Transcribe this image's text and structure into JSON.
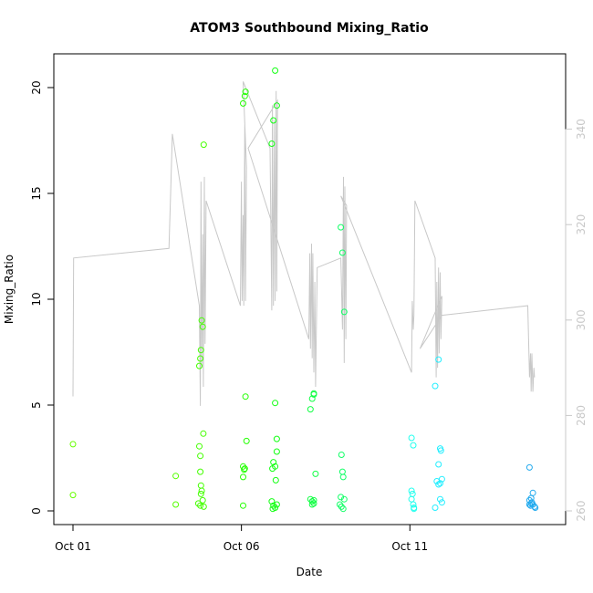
{
  "chart_data": {
    "type": "scatter",
    "title": "ATOM3 Southbound Mixing_Ratio",
    "xlabel": "Date",
    "ylabel": "Mixing_Ratio",
    "x_ticks": [
      "Oct 01",
      "Oct 06",
      "Oct 11"
    ],
    "y_ticks": [
      "0",
      "5",
      "10",
      "15",
      "20"
    ],
    "y2_ticks": [
      "260",
      "280",
      "300",
      "320",
      "340"
    ],
    "xlim_days": [
      1,
      15
    ],
    "ylim": [
      -0.7,
      21.5
    ],
    "y2lim": [
      259,
      353
    ],
    "grid": false,
    "legend": "none",
    "colors": {
      "line": "#c8c8c8",
      "axis": "#000000",
      "right_axis": "#c8c8c8"
    },
    "series": [
      {
        "role": "points",
        "points": [
          {
            "x": 1.0,
            "y": 3.15,
            "c": "#66ff00"
          },
          {
            "x": 1.0,
            "y": 0.75,
            "c": "#66ff00"
          },
          {
            "x": 4.05,
            "y": 1.65,
            "c": "#55ff00"
          },
          {
            "x": 4.05,
            "y": 0.3,
            "c": "#55ff00"
          },
          {
            "x": 4.75,
            "y": 6.85,
            "c": "#44ff00"
          },
          {
            "x": 4.78,
            "y": 7.2,
            "c": "#44ff00"
          },
          {
            "x": 4.8,
            "y": 7.6,
            "c": "#44ff00"
          },
          {
            "x": 4.82,
            "y": 9.0,
            "c": "#44ff00"
          },
          {
            "x": 4.85,
            "y": 8.7,
            "c": "#44ff00"
          },
          {
            "x": 4.88,
            "y": 17.3,
            "c": "#44ff00"
          },
          {
            "x": 4.87,
            "y": 3.65,
            "c": "#44ff00"
          },
          {
            "x": 4.75,
            "y": 3.05,
            "c": "#44ff00"
          },
          {
            "x": 4.78,
            "y": 2.6,
            "c": "#44ff00"
          },
          {
            "x": 4.78,
            "y": 1.85,
            "c": "#44ff00"
          },
          {
            "x": 4.8,
            "y": 1.2,
            "c": "#44ff00"
          },
          {
            "x": 4.82,
            "y": 0.95,
            "c": "#44ff00"
          },
          {
            "x": 4.72,
            "y": 0.35,
            "c": "#44ff00"
          },
          {
            "x": 4.78,
            "y": 0.25,
            "c": "#44ff00"
          },
          {
            "x": 4.85,
            "y": 0.5,
            "c": "#44ff00"
          },
          {
            "x": 4.88,
            "y": 0.2,
            "c": "#44ff00"
          },
          {
            "x": 4.8,
            "y": 0.8,
            "c": "#44ff00"
          },
          {
            "x": 6.05,
            "y": 19.25,
            "c": "#22ff00"
          },
          {
            "x": 6.1,
            "y": 19.6,
            "c": "#22ff00"
          },
          {
            "x": 6.12,
            "y": 19.8,
            "c": "#22ff00"
          },
          {
            "x": 6.12,
            "y": 5.4,
            "c": "#22ff00"
          },
          {
            "x": 6.15,
            "y": 3.3,
            "c": "#22ff00"
          },
          {
            "x": 6.05,
            "y": 2.1,
            "c": "#22ff00"
          },
          {
            "x": 6.08,
            "y": 1.95,
            "c": "#22ff00"
          },
          {
            "x": 6.1,
            "y": 2.0,
            "c": "#22ff00"
          },
          {
            "x": 6.05,
            "y": 1.6,
            "c": "#22ff00"
          },
          {
            "x": 6.05,
            "y": 0.25,
            "c": "#22ff00"
          },
          {
            "x": 6.9,
            "y": 17.35,
            "c": "#11ff11"
          },
          {
            "x": 6.95,
            "y": 18.45,
            "c": "#11ff11"
          },
          {
            "x": 7.0,
            "y": 20.8,
            "c": "#11ff11"
          },
          {
            "x": 7.05,
            "y": 19.15,
            "c": "#11ff11"
          },
          {
            "x": 7.0,
            "y": 5.1,
            "c": "#11ff11"
          },
          {
            "x": 7.05,
            "y": 3.4,
            "c": "#11ff11"
          },
          {
            "x": 7.05,
            "y": 2.8,
            "c": "#11ff11"
          },
          {
            "x": 6.95,
            "y": 2.3,
            "c": "#11ff11"
          },
          {
            "x": 7.0,
            "y": 2.1,
            "c": "#11ff11"
          },
          {
            "x": 6.92,
            "y": 2.0,
            "c": "#11ff11"
          },
          {
            "x": 7.02,
            "y": 1.45,
            "c": "#11ff11"
          },
          {
            "x": 6.9,
            "y": 0.45,
            "c": "#11ff11"
          },
          {
            "x": 6.95,
            "y": 0.25,
            "c": "#11ff11"
          },
          {
            "x": 7.0,
            "y": 0.15,
            "c": "#11ff11"
          },
          {
            "x": 7.05,
            "y": 0.3,
            "c": "#11ff11"
          },
          {
            "x": 6.93,
            "y": 0.1,
            "c": "#11ff11"
          },
          {
            "x": 8.05,
            "y": 4.8,
            "c": "#11ff44"
          },
          {
            "x": 8.1,
            "y": 5.3,
            "c": "#11ff44"
          },
          {
            "x": 8.15,
            "y": 5.5,
            "c": "#11ff44"
          },
          {
            "x": 8.15,
            "y": 5.55,
            "c": "#11ff44"
          },
          {
            "x": 8.2,
            "y": 1.75,
            "c": "#11ff44"
          },
          {
            "x": 8.05,
            "y": 0.55,
            "c": "#11ff44"
          },
          {
            "x": 8.1,
            "y": 0.45,
            "c": "#11ff44"
          },
          {
            "x": 8.15,
            "y": 0.5,
            "c": "#11ff44"
          },
          {
            "x": 8.1,
            "y": 0.3,
            "c": "#11ff44"
          },
          {
            "x": 8.15,
            "y": 0.35,
            "c": "#11ff44"
          },
          {
            "x": 8.95,
            "y": 13.4,
            "c": "#11ff66"
          },
          {
            "x": 9.0,
            "y": 12.2,
            "c": "#11ff66"
          },
          {
            "x": 9.05,
            "y": 9.4,
            "c": "#11ff66"
          },
          {
            "x": 8.97,
            "y": 2.65,
            "c": "#11ff66"
          },
          {
            "x": 9.0,
            "y": 1.85,
            "c": "#11ff66"
          },
          {
            "x": 9.02,
            "y": 1.6,
            "c": "#11ff66"
          },
          {
            "x": 8.95,
            "y": 0.65,
            "c": "#11ff66"
          },
          {
            "x": 9.05,
            "y": 0.55,
            "c": "#11ff66"
          },
          {
            "x": 8.92,
            "y": 0.3,
            "c": "#11ff66"
          },
          {
            "x": 8.97,
            "y": 0.2,
            "c": "#11ff66"
          },
          {
            "x": 9.02,
            "y": 0.1,
            "c": "#11ff66"
          },
          {
            "x": 11.05,
            "y": 3.45,
            "c": "#22ffee"
          },
          {
            "x": 11.1,
            "y": 3.1,
            "c": "#22ffee"
          },
          {
            "x": 11.05,
            "y": 0.95,
            "c": "#22ffee"
          },
          {
            "x": 11.08,
            "y": 0.8,
            "c": "#22ffee"
          },
          {
            "x": 11.05,
            "y": 0.55,
            "c": "#22ffee"
          },
          {
            "x": 11.1,
            "y": 0.3,
            "c": "#22ffee"
          },
          {
            "x": 11.12,
            "y": 0.15,
            "c": "#22ffee"
          },
          {
            "x": 11.12,
            "y": 0.1,
            "c": "#22ffee"
          },
          {
            "x": 11.75,
            "y": 5.9,
            "c": "#22eeff"
          },
          {
            "x": 11.85,
            "y": 7.15,
            "c": "#22eeff"
          },
          {
            "x": 11.9,
            "y": 2.95,
            "c": "#22eeff"
          },
          {
            "x": 11.92,
            "y": 2.85,
            "c": "#22eeff"
          },
          {
            "x": 11.85,
            "y": 2.2,
            "c": "#22eeff"
          },
          {
            "x": 11.8,
            "y": 1.4,
            "c": "#22eeff"
          },
          {
            "x": 11.85,
            "y": 1.25,
            "c": "#22eeff"
          },
          {
            "x": 11.9,
            "y": 1.3,
            "c": "#22eeff"
          },
          {
            "x": 11.95,
            "y": 1.5,
            "c": "#22eeff"
          },
          {
            "x": 11.9,
            "y": 0.55,
            "c": "#22eeff"
          },
          {
            "x": 11.95,
            "y": 0.4,
            "c": "#22eeff"
          },
          {
            "x": 11.75,
            "y": 0.15,
            "c": "#22eeff"
          },
          {
            "x": 14.55,
            "y": 2.05,
            "c": "#22aaee"
          },
          {
            "x": 14.65,
            "y": 0.85,
            "c": "#22aaee"
          },
          {
            "x": 14.6,
            "y": 0.6,
            "c": "#22aaee"
          },
          {
            "x": 14.55,
            "y": 0.5,
            "c": "#22aaee"
          },
          {
            "x": 14.62,
            "y": 0.4,
            "c": "#22aaee"
          },
          {
            "x": 14.6,
            "y": 0.35,
            "c": "#22aaee"
          },
          {
            "x": 14.58,
            "y": 0.25,
            "c": "#22aaee"
          },
          {
            "x": 14.65,
            "y": 0.3,
            "c": "#22aaee"
          },
          {
            "x": 14.7,
            "y": 0.2,
            "c": "#22aaee"
          },
          {
            "x": 14.72,
            "y": 0.15,
            "c": "#22aaee"
          },
          {
            "x": 14.55,
            "y": 0.3,
            "c": "#22aaee"
          }
        ]
      },
      {
        "role": "line_right_axis",
        "points": [
          [
            1.0,
            284
          ],
          [
            1.02,
            313
          ],
          [
            3.85,
            315
          ],
          [
            3.9,
            327
          ],
          [
            3.95,
            339
          ],
          [
            4.75,
            303
          ],
          [
            4.78,
            282
          ],
          [
            4.8,
            329
          ],
          [
            4.82,
            290
          ],
          [
            4.85,
            318
          ],
          [
            4.87,
            286
          ],
          [
            4.9,
            330
          ],
          [
            4.92,
            295
          ],
          [
            4.95,
            325
          ],
          [
            5.97,
            303
          ],
          [
            6.0,
            329
          ],
          [
            6.02,
            304
          ],
          [
            6.05,
            322
          ],
          [
            6.07,
            303
          ],
          [
            6.1,
            341
          ],
          [
            6.12,
            304
          ],
          [
            6.15,
            332
          ],
          [
            6.05,
            350
          ],
          [
            6.85,
            336
          ],
          [
            6.9,
            302
          ],
          [
            6.92,
            345
          ],
          [
            6.95,
            303
          ],
          [
            6.98,
            342
          ],
          [
            7.0,
            304
          ],
          [
            7.03,
            348
          ],
          [
            7.05,
            306
          ],
          [
            7.07,
            346
          ],
          [
            6.2,
            336
          ],
          [
            8.0,
            296
          ],
          [
            8.03,
            314
          ],
          [
            8.05,
            294
          ],
          [
            8.08,
            316
          ],
          [
            8.1,
            292
          ],
          [
            8.12,
            314
          ],
          [
            8.15,
            289
          ],
          [
            8.18,
            308
          ],
          [
            8.2,
            286
          ],
          [
            8.25,
            311
          ],
          [
            8.95,
            313
          ],
          [
            9.0,
            298
          ],
          [
            9.03,
            330
          ],
          [
            9.05,
            291
          ],
          [
            9.07,
            328
          ],
          [
            9.1,
            296
          ],
          [
            9.12,
            324
          ],
          [
            8.95,
            326
          ],
          [
            11.05,
            289
          ],
          [
            11.07,
            304
          ],
          [
            11.1,
            298
          ],
          [
            11.12,
            301
          ],
          [
            11.15,
            325
          ],
          [
            11.75,
            313
          ],
          [
            11.78,
            288
          ],
          [
            11.8,
            308
          ],
          [
            11.82,
            290
          ],
          [
            11.85,
            311
          ],
          [
            11.87,
            293
          ],
          [
            11.9,
            310
          ],
          [
            11.92,
            296
          ],
          [
            11.95,
            305
          ],
          [
            11.3,
            294
          ],
          [
            11.95,
            301
          ],
          [
            14.5,
            303
          ],
          [
            14.55,
            288
          ],
          [
            14.58,
            293
          ],
          [
            14.6,
            285
          ],
          [
            14.62,
            293
          ],
          [
            14.65,
            285
          ],
          [
            14.68,
            290
          ],
          [
            14.7,
            288
          ]
        ]
      }
    ]
  }
}
